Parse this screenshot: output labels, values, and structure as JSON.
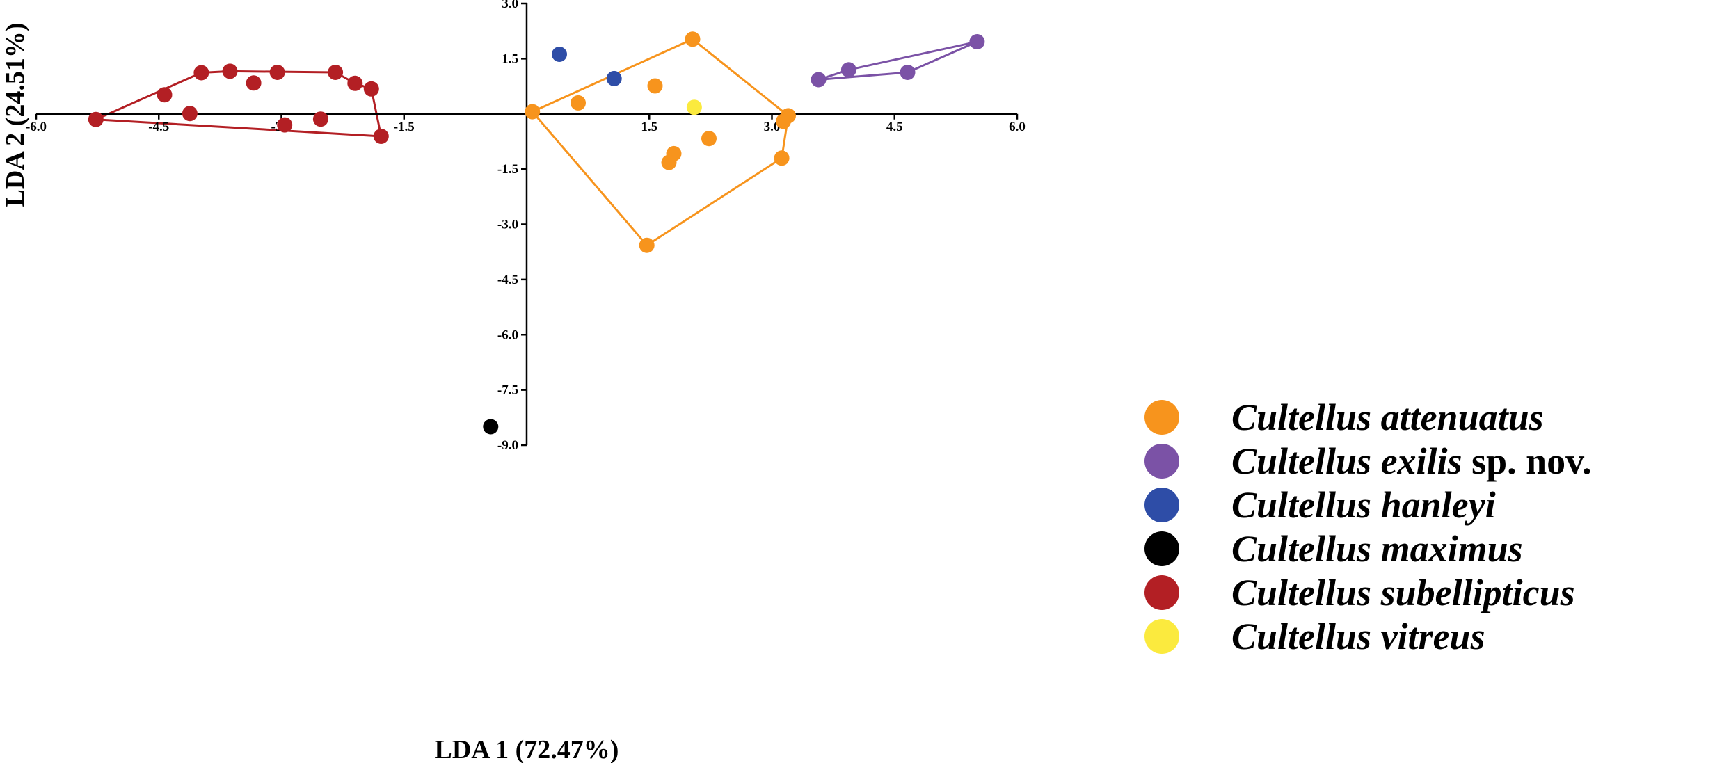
{
  "chart_data": {
    "type": "scatter",
    "title": "",
    "xlabel": "LDA 1 (72.47%)",
    "ylabel": "LDA 2 (24.51%)",
    "xlim": [
      -6.0,
      6.0
    ],
    "ylim": [
      -9.0,
      3.0
    ],
    "x_ticks": [
      "-6.0",
      "-4.5",
      "-3.0",
      "-1.5",
      "1.5",
      "3.0",
      "4.5",
      "6.0"
    ],
    "y_ticks": [
      "3.0",
      "1.5",
      "-1.5",
      "-3.0",
      "-4.5",
      "-6.0",
      "-7.5",
      "-9.0"
    ],
    "grid": false,
    "legend_position": "bottom-right",
    "series": [
      {
        "name": "Cultellus attenuatus",
        "genus": "Cultellus",
        "epithet": "attenuatus",
        "suffix": "",
        "color": "#F7941D",
        "points": [
          [
            0.07,
            0.06
          ],
          [
            2.03,
            2.03
          ],
          [
            3.2,
            -0.05
          ],
          [
            3.14,
            -0.2
          ],
          [
            3.12,
            -1.2
          ],
          [
            1.47,
            -3.57
          ],
          [
            0.63,
            0.3
          ],
          [
            1.57,
            0.76
          ],
          [
            2.23,
            -0.67
          ],
          [
            1.8,
            -1.08
          ],
          [
            1.74,
            -1.32
          ]
        ],
        "hull": [
          [
            0.07,
            0.06
          ],
          [
            2.03,
            2.03
          ],
          [
            3.2,
            -0.05
          ],
          [
            3.12,
            -1.2
          ],
          [
            1.47,
            -3.57
          ],
          [
            0.07,
            0.06
          ]
        ]
      },
      {
        "name": "Cultellus exilis sp. nov.",
        "genus": "Cultellus",
        "epithet": "exilis",
        "suffix": "sp. nov.",
        "color": "#7B52A6",
        "points": [
          [
            3.57,
            0.93
          ],
          [
            3.94,
            1.2
          ],
          [
            4.66,
            1.13
          ],
          [
            5.51,
            1.96
          ]
        ],
        "hull": [
          [
            3.57,
            0.93
          ],
          [
            3.94,
            1.2
          ],
          [
            5.51,
            1.96
          ],
          [
            4.66,
            1.13
          ],
          [
            3.57,
            0.93
          ]
        ]
      },
      {
        "name": "Cultellus hanleyi",
        "genus": "Cultellus",
        "epithet": "hanleyi",
        "suffix": "",
        "color": "#2E4DA7",
        "points": [
          [
            0.4,
            1.62
          ],
          [
            1.07,
            0.96
          ]
        ],
        "hull": []
      },
      {
        "name": "Cultellus maximus",
        "genus": "Cultellus",
        "epithet": "maximus",
        "suffix": "",
        "color": "#000000",
        "points": [
          [
            -0.44,
            -8.5
          ]
        ],
        "hull": []
      },
      {
        "name": "Cultellus subellipticus",
        "genus": "Cultellus",
        "epithet": "subellipticus",
        "suffix": "",
        "color": "#B31F24",
        "points": [
          [
            -5.27,
            -0.15
          ],
          [
            -3.98,
            1.12
          ],
          [
            -3.63,
            1.16
          ],
          [
            -3.05,
            1.13
          ],
          [
            -2.34,
            1.13
          ],
          [
            -2.1,
            0.83
          ],
          [
            -1.9,
            0.68
          ],
          [
            -1.78,
            -0.61
          ],
          [
            -3.34,
            0.84
          ],
          [
            -4.43,
            0.52
          ],
          [
            -4.12,
            0.01
          ],
          [
            -2.96,
            -0.3
          ],
          [
            -2.52,
            -0.14
          ]
        ],
        "hull": [
          [
            -5.27,
            -0.15
          ],
          [
            -3.98,
            1.12
          ],
          [
            -3.63,
            1.16
          ],
          [
            -2.34,
            1.13
          ],
          [
            -2.1,
            0.83
          ],
          [
            -1.9,
            0.68
          ],
          [
            -1.78,
            -0.61
          ],
          [
            -5.27,
            -0.15
          ]
        ]
      },
      {
        "name": "Cultellus vitreus",
        "genus": "Cultellus",
        "epithet": "vitreus",
        "suffix": "",
        "color": "#FBEA3E",
        "points": [
          [
            2.05,
            0.18
          ]
        ],
        "hull": []
      }
    ]
  }
}
